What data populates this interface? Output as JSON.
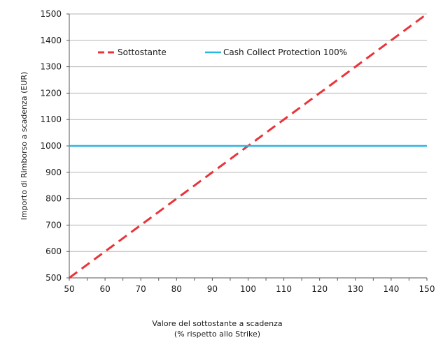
{
  "chart_data": {
    "type": "line",
    "title": "",
    "xlabel_line1": "Valore del sottostante a scadenza",
    "xlabel_line2": "(% rispetto allo Strike)",
    "ylabel": "Importo di Rimborso a scadenza  (EUR)",
    "xlim": [
      50,
      150
    ],
    "ylim": [
      500,
      1500
    ],
    "xticks": [
      50,
      60,
      70,
      80,
      90,
      100,
      110,
      120,
      130,
      140,
      150
    ],
    "yticks": [
      500,
      600,
      700,
      800,
      900,
      1000,
      1100,
      1200,
      1300,
      1400,
      1500
    ],
    "grid": "horizontal",
    "legend_position": "top-left",
    "series": [
      {
        "name": "Sottostante",
        "style": "dashed",
        "color": "#e8343a",
        "x": [
          50,
          150
        ],
        "y": [
          500,
          1500
        ]
      },
      {
        "name": "Cash Collect Protection 100%",
        "style": "solid",
        "color": "#2bb5e3",
        "x": [
          50,
          150
        ],
        "y": [
          1000,
          1000
        ]
      }
    ]
  }
}
